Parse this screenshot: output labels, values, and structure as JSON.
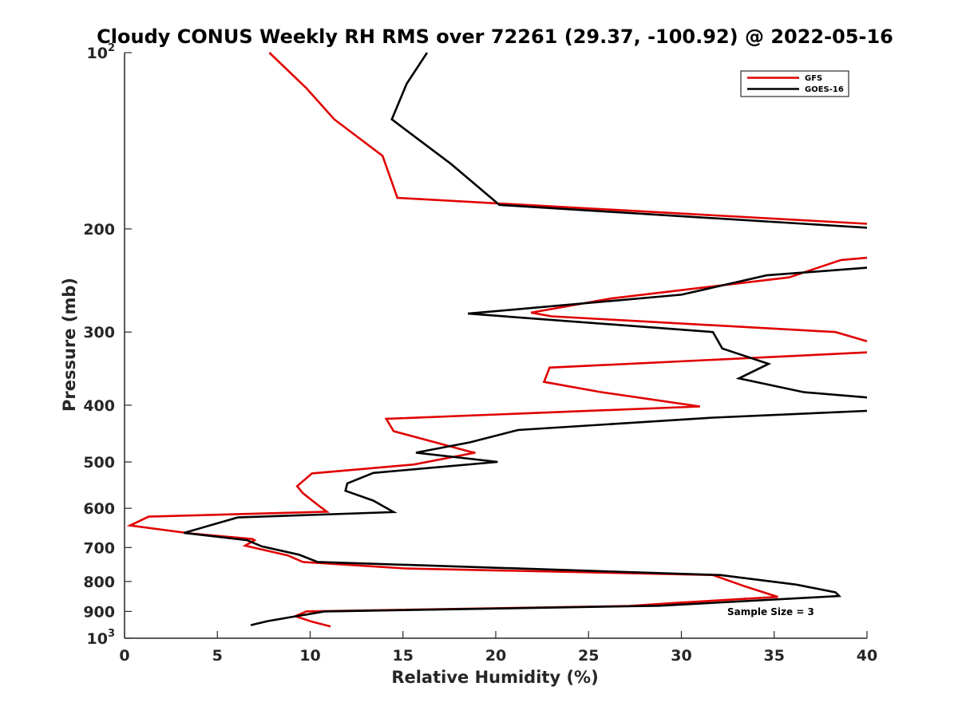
{
  "chart_data": {
    "type": "line",
    "title": "Cloudy CONUS Weekly RH RMS over 72261 (29.37, -100.92) @ 2022-05-16",
    "xlabel": "Relative Humidity (%)",
    "ylabel": "Pressure (mb)",
    "xlim": [
      0,
      40
    ],
    "ylim": [
      100,
      1000
    ],
    "y_scale": "log",
    "y_reversed": true,
    "grid": false,
    "legend_position": "top-right",
    "x_ticks": [
      "0",
      "5",
      "10",
      "15",
      "20",
      "25",
      "30",
      "35",
      "40"
    ],
    "y_ticks": [
      {
        "value": 100,
        "base": "10",
        "exp": "2"
      },
      {
        "value": 200,
        "label": "200"
      },
      {
        "value": 300,
        "label": "300"
      },
      {
        "value": 400,
        "label": "400"
      },
      {
        "value": 500,
        "label": "500"
      },
      {
        "value": 600,
        "label": "600"
      },
      {
        "value": 700,
        "label": "700"
      },
      {
        "value": 800,
        "label": "800"
      },
      {
        "value": 900,
        "label": "900"
      },
      {
        "value": 1000,
        "base": "10",
        "exp": "3"
      }
    ],
    "series": [
      {
        "name": "GFS",
        "color": "#e00000",
        "points": [
          [
            7.8,
            100
          ],
          [
            9.8,
            115
          ],
          [
            11.3,
            130
          ],
          [
            13.9,
            150
          ],
          [
            14.7,
            177
          ],
          [
            40.0,
            196
          ],
          [
            null,
            null
          ],
          [
            40.0,
            224
          ],
          [
            38.6,
            226
          ],
          [
            35.8,
            242
          ],
          [
            26.2,
            263
          ],
          [
            21.9,
            278
          ],
          [
            23.0,
            282
          ],
          [
            38.3,
            300
          ],
          [
            40.0,
            311
          ],
          [
            null,
            null
          ],
          [
            40.0,
            325
          ],
          [
            22.9,
            345
          ],
          [
            22.6,
            365
          ],
          [
            25.7,
            380
          ],
          [
            31.0,
            402
          ],
          [
            14.1,
            422
          ],
          [
            14.5,
            443
          ],
          [
            18.7,
            481
          ],
          [
            18.9,
            482
          ],
          [
            15.6,
            505
          ],
          [
            10.1,
            523
          ],
          [
            9.3,
            550
          ],
          [
            9.6,
            565
          ],
          [
            10.5,
            595
          ],
          [
            10.9,
            608
          ],
          [
            1.3,
            620
          ],
          [
            0.3,
            642
          ],
          [
            3.5,
            662
          ],
          [
            6.9,
            677
          ],
          [
            7.0,
            680
          ],
          [
            6.5,
            695
          ],
          [
            8.8,
            722
          ],
          [
            9.6,
            741
          ],
          [
            15.1,
            760
          ],
          [
            31.7,
            780
          ],
          [
            33.4,
            815
          ],
          [
            35.2,
            850
          ],
          [
            29.8,
            870
          ],
          [
            27.2,
            881
          ],
          [
            9.8,
            900
          ],
          [
            9.2,
            917
          ],
          [
            10.1,
            937
          ],
          [
            11.1,
            955
          ]
        ]
      },
      {
        "name": "GOES-16",
        "color": "#000000",
        "points": [
          [
            16.3,
            100
          ],
          [
            15.2,
            113
          ],
          [
            14.4,
            130
          ],
          [
            17.6,
            155
          ],
          [
            20.2,
            182
          ],
          [
            40.0,
            199
          ],
          [
            null,
            null
          ],
          [
            40.0,
            233
          ],
          [
            34.6,
            240
          ],
          [
            30.0,
            259
          ],
          [
            18.5,
            279
          ],
          [
            31.7,
            300
          ],
          [
            32.2,
            320
          ],
          [
            34.7,
            340
          ],
          [
            33.1,
            360
          ],
          [
            36.6,
            380
          ],
          [
            40.0,
            388
          ],
          [
            null,
            null
          ],
          [
            40.0,
            409
          ],
          [
            31.7,
            420
          ],
          [
            21.2,
            441
          ],
          [
            18.6,
            463
          ],
          [
            15.7,
            482
          ],
          [
            20.1,
            500
          ],
          [
            13.4,
            522
          ],
          [
            12.0,
            544
          ],
          [
            11.9,
            560
          ],
          [
            13.4,
            582
          ],
          [
            14.5,
            609
          ],
          [
            6.1,
            622
          ],
          [
            3.2,
            661
          ],
          [
            6.6,
            680
          ],
          [
            7.4,
            697
          ],
          [
            9.4,
            720
          ],
          [
            10.4,
            741
          ],
          [
            32.1,
            780
          ],
          [
            36.2,
            810
          ],
          [
            38.3,
            835
          ],
          [
            38.5,
            847
          ],
          [
            28.8,
            880
          ],
          [
            10.8,
            900
          ],
          [
            9.0,
            920
          ],
          [
            7.7,
            935
          ],
          [
            6.8,
            950
          ]
        ]
      }
    ],
    "annotations": [
      "Sample Size = 3"
    ]
  }
}
